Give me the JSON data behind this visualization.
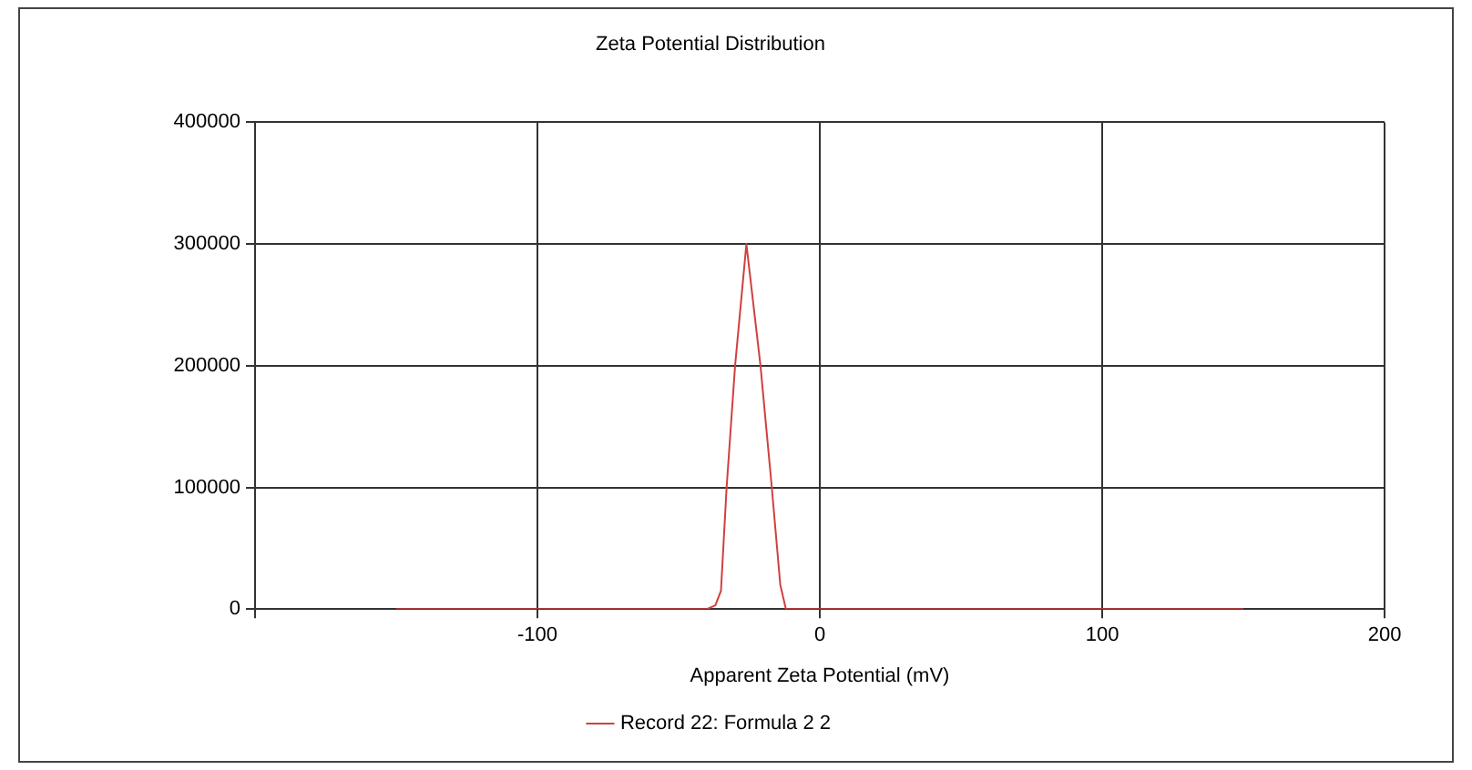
{
  "chart_data": {
    "type": "line",
    "title": "Zeta Potential Distribution",
    "xlabel": "Apparent Zeta Potential (mV)",
    "series": [
      {
        "name": "Record 22: Formula 2 2",
        "color": "#d04040",
        "x": [
          -150,
          -40,
          -37,
          -35,
          -33,
          -30,
          -26,
          -21,
          -17,
          -14,
          -12,
          150
        ],
        "values": [
          0,
          0,
          3000,
          15000,
          100000,
          200000,
          300000,
          200000,
          100000,
          20000,
          0,
          0
        ]
      }
    ],
    "xlim": [
      -200,
      200
    ],
    "xticks": [
      {
        "value": -200,
        "label": null
      },
      -100,
      0,
      100,
      200
    ],
    "ylim": [
      0,
      400000
    ],
    "yticks": [
      0,
      100000,
      200000,
      300000,
      400000
    ],
    "grid": true,
    "legend": "bottom",
    "marker": "none",
    "line_style": "solid"
  }
}
